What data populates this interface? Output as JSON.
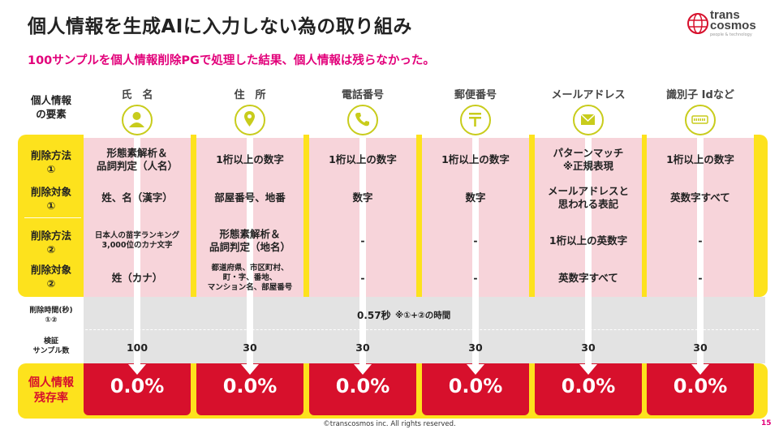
{
  "title": "個人情報を生成AIに入力しない為の取り組み",
  "subtitle": "100サンプルを個人情報削除PGで処理した結果、個人情報は残らなかった。",
  "logo": {
    "line1": "trans",
    "line2": "cosmos",
    "tagline": "people & technology"
  },
  "row_labels": {
    "element": "個人情報\nの要素",
    "method1": "削除方法\n①",
    "target1": "削除対象\n①",
    "method2": "削除方法\n②",
    "target2": "削除対象\n②",
    "time": "削除時間(秒)\n①②",
    "samples": "検証\nサンプル数",
    "residual": "個人情報\n残存率"
  },
  "columns": [
    {
      "label": "氏　名",
      "icon": "person-icon",
      "method1": "形態素解析＆\n品詞判定（人名）",
      "target1": "姓、名（漢字）",
      "method2": "日本人の苗字ランキング\n3,000位のカナ文字",
      "target2": "姓（カナ）",
      "samples": "100",
      "rate": "0.0%"
    },
    {
      "label": "住　所",
      "icon": "location-pin-icon",
      "method1": "1桁以上の数字",
      "target1": "部屋番号、地番",
      "method2": "形態素解析＆\n品詞判定（地名）",
      "target2": "都道府県、市区町村、\n町・字、番地、\nマンション名、部屋番号",
      "samples": "30",
      "rate": "0.0%"
    },
    {
      "label": "電話番号",
      "icon": "phone-icon",
      "method1": "1桁以上の数字",
      "target1": "数字",
      "method2": "-",
      "target2": "-",
      "samples": "30",
      "rate": "0.0%"
    },
    {
      "label": "郵便番号",
      "icon": "postal-mark-icon",
      "method1": "1桁以上の数字",
      "target1": "数字",
      "method2": "-",
      "target2": "-",
      "samples": "30",
      "rate": "0.0%"
    },
    {
      "label": "メールアドレス",
      "icon": "envelope-icon",
      "method1": "パターンマッチ\n※正規表現",
      "target1": "メールアドレスと\n思われる表記",
      "method2": "1桁以上の英数字",
      "target2": "英数字すべて",
      "samples": "30",
      "rate": "0.0%"
    },
    {
      "label": "識別子 Idなど",
      "icon": "id-card-icon",
      "method1": "1桁以上の数字",
      "target1": "英数字すべて",
      "method2": "-",
      "target2": "-",
      "samples": "30",
      "rate": "0.0%"
    }
  ],
  "time": {
    "value": "0.57秒",
    "note": "※①+②の時間"
  },
  "footer": "©transcosmos inc. All rights reserved.",
  "page_number": "15",
  "colors": {
    "accent_pink": "#e2007a",
    "band_yellow": "#fde21d",
    "cell_pink": "#f7d4da",
    "result_red": "#d7102c",
    "icon_olive": "#c8cc1c"
  }
}
